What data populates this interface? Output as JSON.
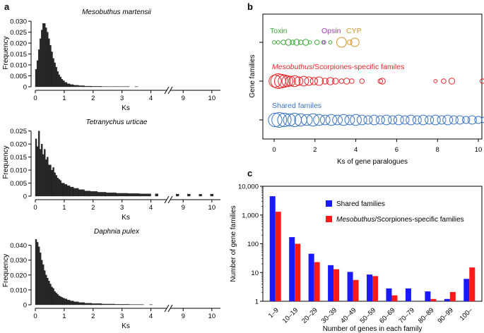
{
  "chart_data": [
    {
      "panel": "a",
      "type": "bar",
      "title": "Mesobuthus martensii",
      "xlabel": "Ks",
      "ylabel": "Frequency",
      "yticks": [
        "0",
        "0.005",
        "0.010",
        "0.015",
        "0.020",
        "0.025",
        "0.030"
      ],
      "ytick_values": [
        0,
        0.005,
        0.01,
        0.015,
        0.02,
        0.025,
        0.03
      ],
      "ylim": [
        0,
        0.031
      ],
      "xticks_left": [
        "0",
        "1",
        "2",
        "3",
        "4"
      ],
      "xticks_right": [
        "9",
        "10"
      ],
      "xlim_left": [
        0,
        4.5
      ],
      "xlim_right": [
        8.6,
        10.3
      ],
      "axis_break": true,
      "histogram_bins": [
        {
          "Ks": 0.025,
          "frequency": 0.008
        },
        {
          "Ks": 0.075,
          "frequency": 0.012
        },
        {
          "Ks": 0.125,
          "frequency": 0.017
        },
        {
          "Ks": 0.175,
          "frequency": 0.022
        },
        {
          "Ks": 0.225,
          "frequency": 0.026
        },
        {
          "Ks": 0.275,
          "frequency": 0.029
        },
        {
          "Ks": 0.325,
          "frequency": 0.029
        },
        {
          "Ks": 0.375,
          "frequency": 0.027
        },
        {
          "Ks": 0.425,
          "frequency": 0.025
        },
        {
          "Ks": 0.475,
          "frequency": 0.022
        },
        {
          "Ks": 0.525,
          "frequency": 0.019
        },
        {
          "Ks": 0.575,
          "frequency": 0.016
        },
        {
          "Ks": 0.625,
          "frequency": 0.013
        },
        {
          "Ks": 0.675,
          "frequency": 0.011
        },
        {
          "Ks": 0.725,
          "frequency": 0.009
        },
        {
          "Ks": 0.775,
          "frequency": 0.007
        },
        {
          "Ks": 0.825,
          "frequency": 0.0055
        },
        {
          "Ks": 0.875,
          "frequency": 0.0045
        },
        {
          "Ks": 0.925,
          "frequency": 0.0035
        },
        {
          "Ks": 0.975,
          "frequency": 0.0028
        },
        {
          "Ks": 1.05,
          "frequency": 0.002
        },
        {
          "Ks": 1.15,
          "frequency": 0.0014
        },
        {
          "Ks": 1.25,
          "frequency": 0.001
        },
        {
          "Ks": 1.4,
          "frequency": 0.0007
        },
        {
          "Ks": 1.6,
          "frequency": 0.0005
        },
        {
          "Ks": 1.8,
          "frequency": 0.0003
        },
        {
          "Ks": 2.1,
          "frequency": 0.0002
        },
        {
          "Ks": 2.5,
          "frequency": 0.0001
        },
        {
          "Ks": 3.0,
          "frequency": 0.0001
        },
        {
          "Ks": 3.5,
          "frequency": 0.0001
        }
      ]
    },
    {
      "panel": "a",
      "type": "bar",
      "title": "Tetranychus urticae",
      "xlabel": "Ks",
      "ylabel": "Frequency",
      "yticks": [
        "0",
        "0.005",
        "0.010",
        "0.015",
        "0.020",
        "0.025"
      ],
      "ytick_values": [
        0,
        0.005,
        0.01,
        0.015,
        0.02,
        0.025
      ],
      "ylim": [
        0,
        0.026
      ],
      "xticks_left": [
        "0",
        "1",
        "2",
        "3",
        "4"
      ],
      "xticks_right": [
        "9",
        "10"
      ],
      "xlim_left": [
        0,
        4.5
      ],
      "xlim_right": [
        8.6,
        10.3
      ],
      "axis_break": true,
      "histogram_bins": [
        {
          "Ks": 0.025,
          "frequency": 0.022
        },
        {
          "Ks": 0.075,
          "frequency": 0.019
        },
        {
          "Ks": 0.125,
          "frequency": 0.025
        },
        {
          "Ks": 0.175,
          "frequency": 0.018
        },
        {
          "Ks": 0.225,
          "frequency": 0.02
        },
        {
          "Ks": 0.275,
          "frequency": 0.016
        },
        {
          "Ks": 0.325,
          "frequency": 0.018
        },
        {
          "Ks": 0.375,
          "frequency": 0.014
        },
        {
          "Ks": 0.425,
          "frequency": 0.015
        },
        {
          "Ks": 0.475,
          "frequency": 0.012
        },
        {
          "Ks": 0.525,
          "frequency": 0.012
        },
        {
          "Ks": 0.575,
          "frequency": 0.01
        },
        {
          "Ks": 0.625,
          "frequency": 0.011
        },
        {
          "Ks": 0.675,
          "frequency": 0.009
        },
        {
          "Ks": 0.725,
          "frequency": 0.008
        },
        {
          "Ks": 0.775,
          "frequency": 0.007
        },
        {
          "Ks": 0.825,
          "frequency": 0.0065
        },
        {
          "Ks": 0.875,
          "frequency": 0.006
        },
        {
          "Ks": 0.925,
          "frequency": 0.005
        },
        {
          "Ks": 0.975,
          "frequency": 0.005
        },
        {
          "Ks": 1.05,
          "frequency": 0.0045
        },
        {
          "Ks": 1.15,
          "frequency": 0.004
        },
        {
          "Ks": 1.25,
          "frequency": 0.0035
        },
        {
          "Ks": 1.4,
          "frequency": 0.003
        },
        {
          "Ks": 1.6,
          "frequency": 0.0025
        },
        {
          "Ks": 1.8,
          "frequency": 0.002
        },
        {
          "Ks": 2.0,
          "frequency": 0.0018
        },
        {
          "Ks": 2.3,
          "frequency": 0.0015
        },
        {
          "Ks": 2.6,
          "frequency": 0.0013
        },
        {
          "Ks": 3.0,
          "frequency": 0.0011
        },
        {
          "Ks": 3.4,
          "frequency": 0.001
        },
        {
          "Ks": 3.8,
          "frequency": 0.0009
        },
        {
          "Ks": 4.2,
          "frequency": 0.0009
        },
        {
          "Ks": 8.8,
          "frequency": 0.0008
        },
        {
          "Ks": 9.2,
          "frequency": 0.0008
        },
        {
          "Ks": 9.6,
          "frequency": 0.0007
        },
        {
          "Ks": 10.0,
          "frequency": 0.0008
        }
      ]
    },
    {
      "panel": "a",
      "type": "bar",
      "title": "Daphnia pulex",
      "xlabel": "Ks",
      "ylabel": "Frequency",
      "yticks": [
        "0",
        "0.010",
        "0.020",
        "0.030",
        "0.040"
      ],
      "ytick_values": [
        0,
        0.01,
        0.02,
        0.03,
        0.04
      ],
      "ylim": [
        0,
        0.046
      ],
      "xticks_left": [
        "0",
        "1",
        "2",
        "3",
        "4"
      ],
      "xticks_right": [
        "9",
        "10"
      ],
      "xlim_left": [
        0,
        4.5
      ],
      "xlim_right": [
        8.6,
        10.3
      ],
      "axis_break": true,
      "histogram_bins": [
        {
          "Ks": 0.025,
          "frequency": 0.044
        },
        {
          "Ks": 0.075,
          "frequency": 0.042
        },
        {
          "Ks": 0.125,
          "frequency": 0.039
        },
        {
          "Ks": 0.175,
          "frequency": 0.035
        },
        {
          "Ks": 0.225,
          "frequency": 0.03
        },
        {
          "Ks": 0.275,
          "frequency": 0.027
        },
        {
          "Ks": 0.325,
          "frequency": 0.023
        },
        {
          "Ks": 0.375,
          "frequency": 0.02
        },
        {
          "Ks": 0.425,
          "frequency": 0.018
        },
        {
          "Ks": 0.475,
          "frequency": 0.016
        },
        {
          "Ks": 0.525,
          "frequency": 0.014
        },
        {
          "Ks": 0.575,
          "frequency": 0.012
        },
        {
          "Ks": 0.625,
          "frequency": 0.011
        },
        {
          "Ks": 0.675,
          "frequency": 0.009
        },
        {
          "Ks": 0.725,
          "frequency": 0.008
        },
        {
          "Ks": 0.775,
          "frequency": 0.007
        },
        {
          "Ks": 0.825,
          "frequency": 0.006
        },
        {
          "Ks": 0.875,
          "frequency": 0.0055
        },
        {
          "Ks": 0.925,
          "frequency": 0.005
        },
        {
          "Ks": 0.975,
          "frequency": 0.0045
        },
        {
          "Ks": 1.05,
          "frequency": 0.004
        },
        {
          "Ks": 1.15,
          "frequency": 0.0032
        },
        {
          "Ks": 1.25,
          "frequency": 0.0026
        },
        {
          "Ks": 1.4,
          "frequency": 0.002
        },
        {
          "Ks": 1.6,
          "frequency": 0.0015
        },
        {
          "Ks": 1.8,
          "frequency": 0.0011
        },
        {
          "Ks": 2.1,
          "frequency": 0.0008
        },
        {
          "Ks": 2.5,
          "frequency": 0.0005
        },
        {
          "Ks": 3.0,
          "frequency": 0.0003
        },
        {
          "Ks": 3.5,
          "frequency": 0.0002
        },
        {
          "Ks": 4.0,
          "frequency": 0.0001
        }
      ]
    },
    {
      "panel": "b",
      "type": "scatter",
      "xlabel": "Ks of gene paralogues",
      "ylabel": "Gene families",
      "xticks": [
        "0",
        "2",
        "4",
        "6",
        "8",
        "10"
      ],
      "xtick_values": [
        0,
        2,
        4,
        6,
        8,
        10
      ],
      "xlim": [
        -0.4,
        10.4
      ],
      "rows": [
        {
          "name": "Toxin",
          "subset": "Toxin",
          "color": "#3aaa35",
          "points": [
            {
              "Ks": 0.0,
              "size": 1
            },
            {
              "Ks": 0.2,
              "size": 1
            },
            {
              "Ks": 0.45,
              "size": 2
            },
            {
              "Ks": 0.7,
              "size": 3
            },
            {
              "Ks": 0.9,
              "size": 2
            },
            {
              "Ks": 1.1,
              "size": 3
            },
            {
              "Ks": 1.3,
              "size": 2
            },
            {
              "Ks": 1.55,
              "size": 3
            },
            {
              "Ks": 1.75,
              "size": 1
            },
            {
              "Ks": 2.1,
              "size": 2
            },
            {
              "Ks": 2.4,
              "size": 1
            },
            {
              "Ks": 2.75,
              "size": 1
            }
          ]
        },
        {
          "name": "Opsin",
          "subset": "Opsin",
          "color": "#9b3fb5",
          "points": [
            {
              "Ks": 2.45,
              "size": 1
            }
          ]
        },
        {
          "name": "CYP",
          "subset": "CYP",
          "color": "#d4952a",
          "points": [
            {
              "Ks": 3.3,
              "size": 6
            },
            {
              "Ks": 3.7,
              "size": 2
            },
            {
              "Ks": 3.95,
              "size": 5
            }
          ]
        },
        {
          "name": "Mesobuthus/Scorpiones-specific familes",
          "subset": "specific",
          "color": "#e8262a",
          "points": [
            {
              "Ks": 0.05,
              "size": 8
            },
            {
              "Ks": 0.2,
              "size": 10
            },
            {
              "Ks": 0.35,
              "size": 9
            },
            {
              "Ks": 0.5,
              "size": 8
            },
            {
              "Ks": 0.65,
              "size": 7
            },
            {
              "Ks": 0.8,
              "size": 6
            },
            {
              "Ks": 1.0,
              "size": 7
            },
            {
              "Ks": 1.2,
              "size": 5
            },
            {
              "Ks": 1.45,
              "size": 6
            },
            {
              "Ks": 1.7,
              "size": 5
            },
            {
              "Ks": 1.95,
              "size": 4
            },
            {
              "Ks": 2.2,
              "size": 5
            },
            {
              "Ks": 2.5,
              "size": 3
            },
            {
              "Ks": 2.75,
              "size": 4
            },
            {
              "Ks": 3.0,
              "size": 3
            },
            {
              "Ks": 3.3,
              "size": 2
            },
            {
              "Ks": 3.55,
              "size": 3
            },
            {
              "Ks": 3.8,
              "size": 2
            },
            {
              "Ks": 4.3,
              "size": 2
            },
            {
              "Ks": 5.2,
              "size": 2
            },
            {
              "Ks": 5.3,
              "size": 3
            },
            {
              "Ks": 7.9,
              "size": 1
            },
            {
              "Ks": 8.3,
              "size": 2
            },
            {
              "Ks": 8.7,
              "size": 3
            },
            {
              "Ks": 10.2,
              "size": 2
            }
          ]
        },
        {
          "name": "Shared familes",
          "subset": "shared",
          "color": "#3a74c4",
          "points": [
            {
              "Ks": 0.05,
              "size": 9
            },
            {
              "Ks": 0.25,
              "size": 10
            },
            {
              "Ks": 0.5,
              "size": 9
            },
            {
              "Ks": 0.75,
              "size": 8
            },
            {
              "Ks": 1.0,
              "size": 9
            },
            {
              "Ks": 1.3,
              "size": 8
            },
            {
              "Ks": 1.6,
              "size": 7
            },
            {
              "Ks": 1.9,
              "size": 8
            },
            {
              "Ks": 2.2,
              "size": 7
            },
            {
              "Ks": 2.5,
              "size": 6
            },
            {
              "Ks": 2.8,
              "size": 7
            },
            {
              "Ks": 3.1,
              "size": 6
            },
            {
              "Ks": 3.4,
              "size": 7
            },
            {
              "Ks": 3.7,
              "size": 6
            },
            {
              "Ks": 4.0,
              "size": 7
            },
            {
              "Ks": 4.3,
              "size": 6
            },
            {
              "Ks": 4.6,
              "size": 5
            },
            {
              "Ks": 4.9,
              "size": 6
            },
            {
              "Ks": 5.2,
              "size": 5
            },
            {
              "Ks": 5.5,
              "size": 6
            },
            {
              "Ks": 5.8,
              "size": 5
            },
            {
              "Ks": 6.1,
              "size": 6
            },
            {
              "Ks": 6.4,
              "size": 5
            },
            {
              "Ks": 6.7,
              "size": 6
            },
            {
              "Ks": 7.0,
              "size": 5
            },
            {
              "Ks": 7.3,
              "size": 6
            },
            {
              "Ks": 7.6,
              "size": 5
            },
            {
              "Ks": 7.9,
              "size": 6
            },
            {
              "Ks": 8.2,
              "size": 5
            },
            {
              "Ks": 8.5,
              "size": 6
            },
            {
              "Ks": 8.8,
              "size": 5
            },
            {
              "Ks": 9.1,
              "size": 5
            },
            {
              "Ks": 9.4,
              "size": 4
            },
            {
              "Ks": 9.7,
              "size": 5
            },
            {
              "Ks": 10.0,
              "size": 4
            },
            {
              "Ks": 10.3,
              "size": 3
            }
          ]
        }
      ]
    },
    {
      "panel": "c",
      "type": "bar",
      "xlabel": "Number of genes in each family",
      "ylabel": "Number of gene families",
      "yscale": "log",
      "ylim": [
        1,
        10000
      ],
      "yticks": [
        "1",
        "10",
        "100",
        "1,000",
        "10,000"
      ],
      "ytick_values": [
        1,
        10,
        100,
        1000,
        10000
      ],
      "categories": [
        "1–9",
        "10–19",
        "20–29",
        "30–39",
        "40–49",
        "50–59",
        "60–69",
        "70–79",
        "80–89",
        "90–99",
        "100–"
      ],
      "series": [
        {
          "name": "Shared families",
          "color": "#1a1aff",
          "values": [
            4500,
            170,
            45,
            18,
            10.5,
            8.5,
            2.8,
            2.8,
            2.2,
            1.2,
            6
          ]
        },
        {
          "name": "Mesobuthus/Scorpiones-specific families",
          "color": "#ff1a1a",
          "values": [
            1300,
            100,
            23,
            13,
            5.5,
            7.5,
            1.6,
            1.0,
            1.2,
            2.1,
            15
          ]
        }
      ]
    }
  ],
  "panel_labels": {
    "a": "a",
    "b": "b",
    "c": "c"
  },
  "panel_b_labels": {
    "toxin": "Toxin",
    "opsin": "Opsin",
    "cyp": "CYP",
    "specific_italic": "Mesobuthus",
    "specific_rest": "/Scorpiones-specific familes",
    "shared": "Shared familes"
  },
  "panel_c_legend": [
    {
      "italic": "",
      "rest": "Shared families",
      "color": "#1a1aff"
    },
    {
      "italic": "Mesobuthus",
      "rest": "/Scorpiones-specific families",
      "color": "#ff1a1a"
    }
  ]
}
